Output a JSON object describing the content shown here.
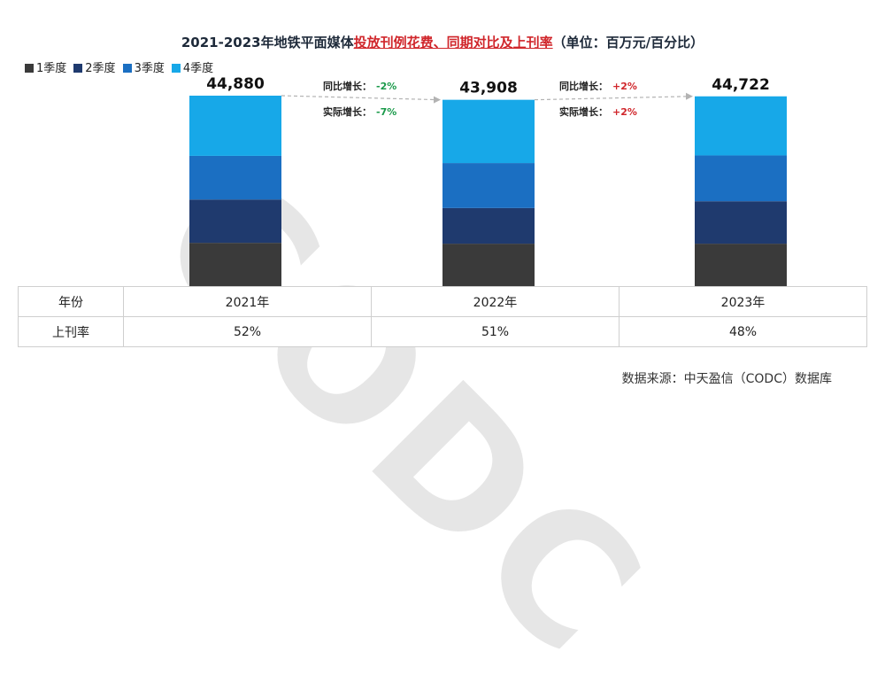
{
  "title": {
    "prefix": "2021-2023年地铁平面媒体",
    "highlight": "投放刊例花费、同期对比及上刊率",
    "unit": "（单位：百万元/百分比）"
  },
  "legend": [
    {
      "label": "1季度",
      "color": "#3a3a3a"
    },
    {
      "label": "2季度",
      "color": "#1f3a6e"
    },
    {
      "label": "3季度",
      "color": "#1b6fc2"
    },
    {
      "label": "4季度",
      "color": "#17a8e8"
    }
  ],
  "chart_data": {
    "type": "bar",
    "stacked": true,
    "categories": [
      "2021年",
      "2022年",
      "2023年"
    ],
    "totals": [
      44880,
      43908,
      44722
    ],
    "total_labels": [
      "44,880",
      "43,908",
      "44,722"
    ],
    "series": [
      {
        "name": "1季度",
        "values": [
          10200,
          10000,
          10000
        ]
      },
      {
        "name": "2季度",
        "values": [
          10200,
          8400,
          10000
        ]
      },
      {
        "name": "3季度",
        "values": [
          10300,
          10600,
          10800
        ]
      },
      {
        "name": "4季度",
        "values": [
          14180,
          14908,
          13922
        ]
      }
    ],
    "annotations": [
      {
        "yoy_label": "同比增长：",
        "yoy_value": "-2%",
        "actual_label": "实际增长：",
        "actual_value": "-7%"
      },
      {
        "yoy_label": "同比增长：",
        "yoy_value": "+2%",
        "actual_label": "实际增长：",
        "actual_value": "+2%"
      }
    ]
  },
  "table": {
    "row_headers": [
      "年份",
      "上刊率"
    ],
    "years": [
      "2021年",
      "2022年",
      "2023年"
    ],
    "rates": [
      "52%",
      "51%",
      "48%"
    ]
  },
  "watermark": "CODC",
  "source": "数据来源：中天盈信（CODC）数据库",
  "colors": {
    "positive": "#d0262b",
    "negative": "#1a9a4a"
  }
}
